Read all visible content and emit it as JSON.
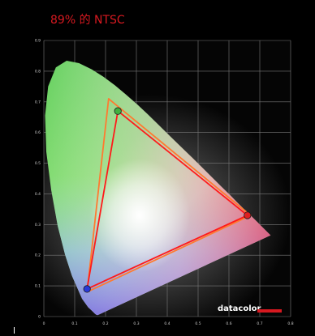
{
  "headline": "89% 的 NTSC",
  "colors": {
    "headline": "#d71920",
    "background": "#000000",
    "plot_background": "#050505",
    "grid": "#7a7a7a",
    "gamut_measured": "#ff1a1a",
    "gamut_reference": "#ff7a30",
    "red_primary": "#e02020",
    "green_primary": "#40b040",
    "blue_primary": "#2a3ad8",
    "logo_bar": "#d71920"
  },
  "logo": "datacolor",
  "chart_data": {
    "type": "scatter",
    "title": "89% 的 NTSC",
    "xlabel": "",
    "ylabel": "",
    "xlim": [
      0,
      0.8
    ],
    "ylim": [
      0,
      0.9
    ],
    "x_ticks": [
      "0",
      "0.1",
      "0.2",
      "0.3",
      "0.4",
      "0.5",
      "0.6",
      "0.7",
      "0.8"
    ],
    "y_ticks": [
      "0",
      "0.1",
      "0.2",
      "0.3",
      "0.4",
      "0.5",
      "0.6",
      "0.7",
      "0.8",
      "0.9"
    ],
    "grid": true,
    "series": [
      {
        "points": [
          [
            0.67,
            0.33
          ],
          [
            0.21,
            0.71
          ],
          [
            0.14,
            0.08
          ]
        ]
      },
      {
        "points": [
          [
            0.66,
            0.33
          ],
          [
            0.24,
            0.67
          ],
          [
            0.14,
            0.09
          ]
        ]
      }
    ]
  }
}
